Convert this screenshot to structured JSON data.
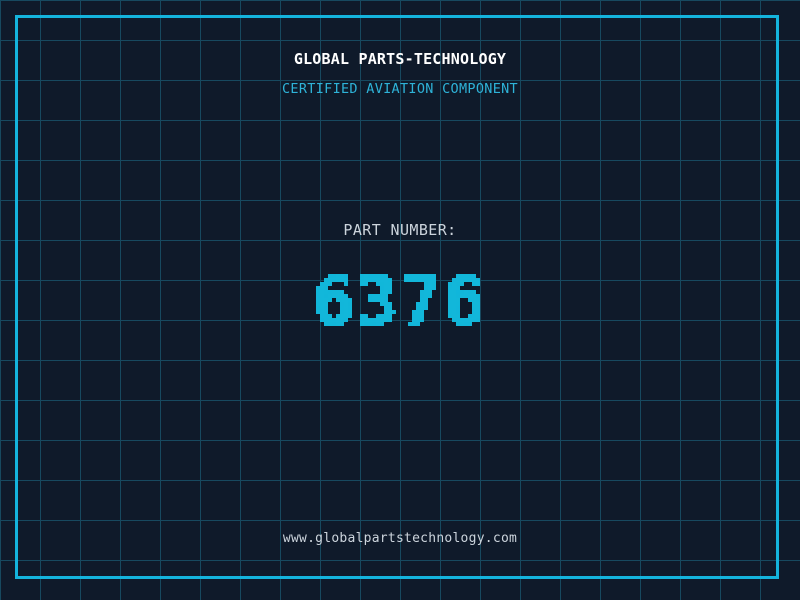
{
  "page": {
    "title": "GLOBAL PARTS-TECHNOLOGY",
    "subtitle": "CERTIFIED AVIATION COMPONENT",
    "part_label": "PART NUMBER:",
    "part_number": "6376",
    "website": "www.globalpartstechnology.com"
  },
  "colors": {
    "background": "#0f1a2a",
    "grid_line": "#17495f",
    "frame": "#14b4dc",
    "title_text": "#ffffff",
    "subtitle_text": "#2eb3d8",
    "label_text": "#ccd4dc",
    "part_number_text": "#12b7da",
    "website_text": "#ccd4dc"
  }
}
